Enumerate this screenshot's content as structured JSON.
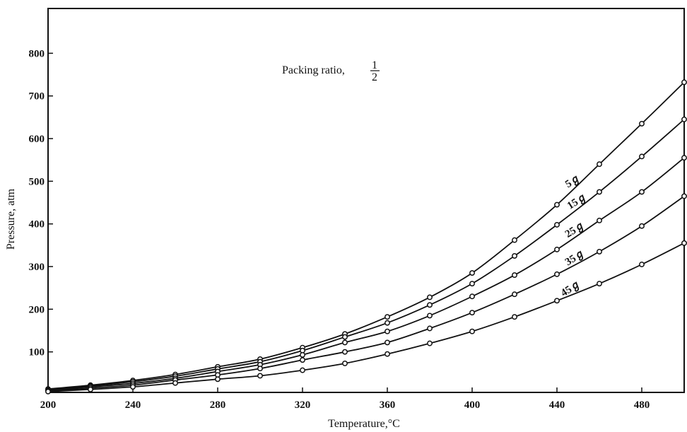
{
  "chart_data": {
    "type": "line",
    "title": "",
    "annotation": {
      "text": "Packing ratio,",
      "fraction_numerator": "1",
      "fraction_denominator": "2"
    },
    "xlabel": "Temperature,°C",
    "ylabel": "Pressure, atm",
    "xlim": [
      200,
      500
    ],
    "ylim": [
      5,
      905
    ],
    "xticks": [
      200,
      240,
      280,
      320,
      360,
      400,
      440,
      480
    ],
    "xtick_labels": [
      "200",
      "240",
      "280",
      "320",
      "360",
      "400",
      "440",
      "480"
    ],
    "yticks": [
      100,
      200,
      300,
      400,
      500,
      600,
      700,
      800
    ],
    "ytick_labels": [
      "100",
      "200",
      "300",
      "400",
      "500",
      "600",
      "700",
      "800"
    ],
    "grid": false,
    "legend": "none",
    "x": [
      200,
      220,
      240,
      260,
      280,
      300,
      320,
      340,
      360,
      380,
      400,
      420,
      440,
      460,
      480,
      500
    ],
    "series": [
      {
        "name": "5%",
        "label": "5ℊ",
        "label_at_x": 449,
        "values": [
          13,
          22,
          33,
          47,
          65,
          83,
          110,
          142,
          182,
          228,
          285,
          362,
          445,
          540,
          635,
          732
        ]
      },
      {
        "name": "15%",
        "label": "15ℊ",
        "label_at_x": 451,
        "values": [
          11,
          20,
          30,
          43,
          60,
          77,
          103,
          135,
          168,
          210,
          260,
          325,
          398,
          475,
          558,
          645
        ]
      },
      {
        "name": "25%",
        "label": "25ℊ",
        "label_at_x": 450,
        "values": [
          10,
          18,
          26,
          38,
          54,
          70,
          93,
          122,
          148,
          185,
          230,
          280,
          340,
          408,
          475,
          555
        ]
      },
      {
        "name": "35%",
        "label": "35ℊ",
        "label_at_x": 450,
        "values": [
          9,
          15,
          22,
          34,
          46,
          61,
          81,
          100,
          122,
          155,
          192,
          235,
          282,
          335,
          395,
          465
        ]
      },
      {
        "name": "45%",
        "label": "45ℊ",
        "label_at_x": 448,
        "values": [
          7,
          12,
          18,
          27,
          36,
          44,
          57,
          73,
          95,
          120,
          148,
          182,
          220,
          260,
          305,
          355
        ]
      }
    ]
  }
}
